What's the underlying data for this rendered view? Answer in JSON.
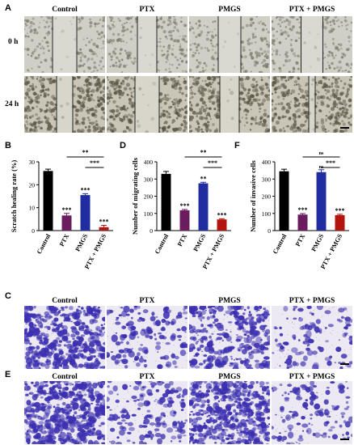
{
  "panels": {
    "A": "A",
    "B": "B",
    "C": "C",
    "D": "D",
    "E": "E",
    "F": "F"
  },
  "groups": [
    "Control",
    "PTX",
    "PMGS",
    "PTX + PMGS"
  ],
  "scratch": {
    "rows": [
      "0 h",
      "24 h"
    ]
  },
  "colors": {
    "control": "#000000",
    "ptx": "#6b1c5e",
    "pmgs": "#1f2da0",
    "combo": "#b3140f",
    "crystal_violet": "#3b2fb0"
  },
  "chart_data": [
    {
      "type": "bar",
      "ylabel": "Scratch healing rate (%)",
      "categories": [
        "Control",
        "PTX",
        "PMGS",
        "PTX + PMGS"
      ],
      "values": [
        26,
        6.6,
        15.5,
        1.5
      ],
      "errors": [
        0.8,
        0.9,
        0.6,
        0.8
      ],
      "ylim": [
        0,
        30
      ],
      "yticks": [
        0,
        10,
        20,
        30
      ],
      "bar_labels": [
        "",
        "***",
        "***",
        "***"
      ],
      "brackets": [
        {
          "from": "PTX",
          "to": "PTX + PMGS",
          "label": "**",
          "level": 1
        },
        {
          "from": "PMGS",
          "to": "PTX + PMGS",
          "label": "***",
          "level": 0
        }
      ]
    },
    {
      "type": "bar",
      "ylabel": "Number of migrating cells",
      "categories": [
        "Control",
        "PTX",
        "PMGS",
        "PTX + PMGS"
      ],
      "values": [
        330,
        118,
        275,
        65
      ],
      "errors": [
        14,
        5,
        6,
        4
      ],
      "ylim": [
        0,
        400
      ],
      "yticks": [
        0,
        100,
        200,
        300,
        400
      ],
      "bar_labels": [
        "",
        "***",
        "**",
        "***"
      ],
      "brackets": [
        {
          "from": "PTX",
          "to": "PTX + PMGS",
          "label": "**",
          "level": 1
        },
        {
          "from": "PMGS",
          "to": "PTX + PMGS",
          "label": "***",
          "level": 0
        }
      ]
    },
    {
      "type": "bar",
      "ylabel": "Number of invasive cells",
      "categories": [
        "Control",
        "PTX",
        "PMGS",
        "PTX + PMGS"
      ],
      "values": [
        345,
        93,
        340,
        90
      ],
      "errors": [
        12,
        6,
        14,
        5
      ],
      "ylim": [
        0,
        400
      ],
      "yticks": [
        0,
        100,
        200,
        300,
        400
      ],
      "bar_labels": [
        "",
        "***",
        "ns",
        "***"
      ],
      "brackets": [
        {
          "from": "PTX",
          "to": "PTX + PMGS",
          "label": "ns",
          "level": 1
        },
        {
          "from": "PMGS",
          "to": "PTX + PMGS",
          "label": "***",
          "level": 0
        }
      ]
    }
  ]
}
